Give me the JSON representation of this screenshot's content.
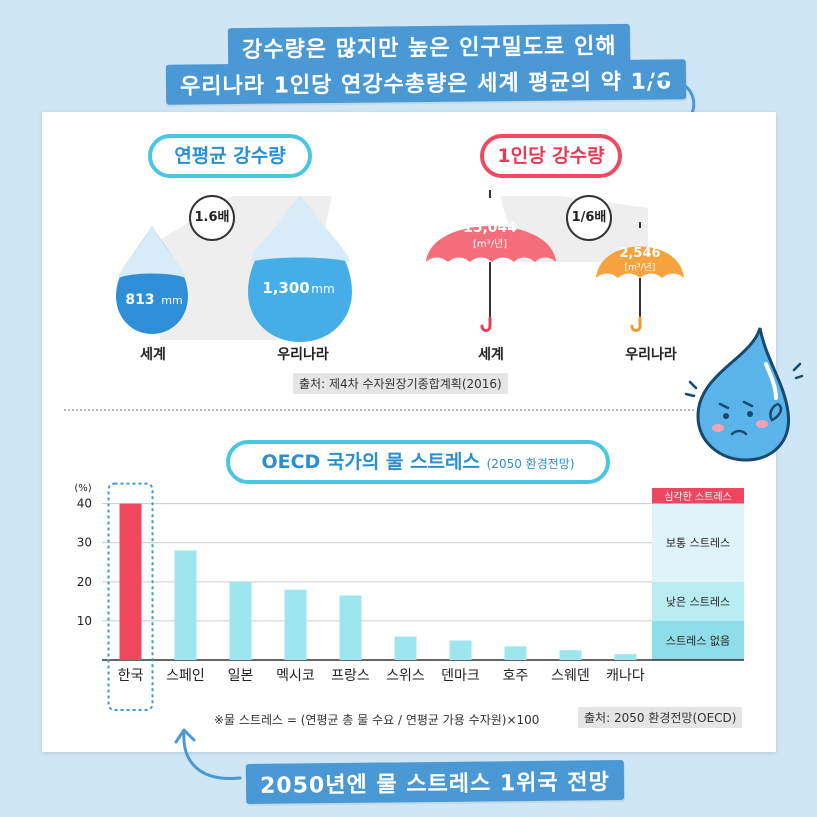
{
  "headline": {
    "line1": "강수량은 많지만 높은 인구밀도로 인해",
    "line2": "우리나라 1인당 연강수총량은 세계 평균의 약 1/6"
  },
  "annual_rainfall": {
    "title": "연평균 강수량",
    "ratio": "1.6배",
    "world": {
      "label": "세계",
      "value": "813",
      "unit": "mm"
    },
    "korea": {
      "label": "우리나라",
      "value": "1,300",
      "unit": "mm"
    }
  },
  "per_capita_rainfall": {
    "title": "1인당 강수량",
    "ratio": "1/6배",
    "world": {
      "label": "세계",
      "value": "15,044",
      "unit": "[m³/년]"
    },
    "korea": {
      "label": "우리나라",
      "value": "2,546",
      "unit": "[m³/년]"
    }
  },
  "source_top": "출처: 제4차 수자원장기종합계획(2016)",
  "stress_chart": {
    "title": "OECD 국가의 물 스트레스",
    "subtitle": "(2050 환경전망)",
    "footnote": "※물 스트레스 = (연평균 총 물 수요 / 연평균 가용 수자원)×100",
    "source": "출처: 2050 환경전망(OECD)"
  },
  "chart_data": {
    "type": "bar",
    "ylabel": "(%)",
    "ylim": [
      0,
      44
    ],
    "yticks": [
      10,
      20,
      30,
      40
    ],
    "categories": [
      "한국",
      "스페인",
      "일본",
      "멕시코",
      "프랑스",
      "스위스",
      "덴마크",
      "호주",
      "스웨덴",
      "캐나다"
    ],
    "values": [
      40,
      28,
      20,
      18,
      16.5,
      6,
      5,
      3.5,
      2.5,
      1.5
    ],
    "highlight_index": 0,
    "colors": {
      "highlight": "#f2485f",
      "normal": "#9ee6ef"
    },
    "stress_bands": [
      {
        "label": "심각한 스트레스",
        "from": 40,
        "to": 44,
        "color": "#ee4560"
      },
      {
        "label": "보통 스트레스",
        "from": 20,
        "to": 40,
        "color": "#dff4f9"
      },
      {
        "label": "낮은 스트레스",
        "from": 10,
        "to": 20,
        "color": "#b9ecf3"
      },
      {
        "label": "스트레스 없음",
        "from": 0,
        "to": 10,
        "color": "#8fdde9"
      }
    ]
  },
  "footer": "2050년엔 물 스트레스 1위국 전망"
}
